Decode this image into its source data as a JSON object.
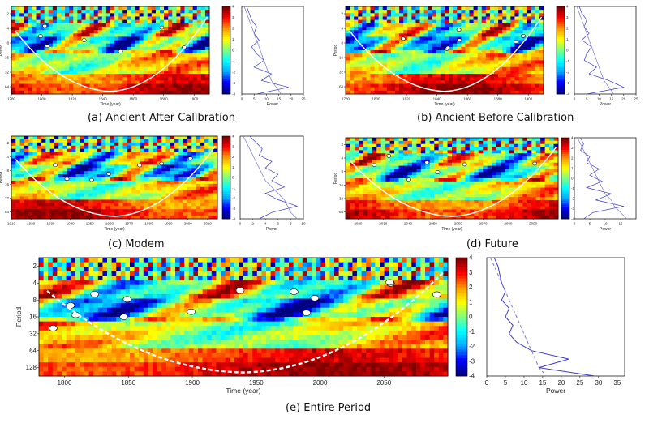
{
  "colors": {
    "colormap": [
      "#000080",
      "#0000ff",
      "#00aaff",
      "#00ffff",
      "#7fff7f",
      "#ffff00",
      "#ff9900",
      "#ff0000",
      "#800000"
    ],
    "contour": "#000000",
    "coi_line": "#ffffff",
    "global_line": "#3c3ccc",
    "significance_line": "#7a7ac8"
  },
  "chart_data": [
    {
      "id": "a",
      "type": "heatmap",
      "caption": "(a) Ancient-After Calibration",
      "xlabel": "Time (year)",
      "ylabel": "Period",
      "xlim": [
        1780,
        1910
      ],
      "x_ticks": [
        "1780",
        "1800",
        "1820",
        "1840",
        "1860",
        "1880",
        "1900"
      ],
      "y_ticks": [
        "2",
        "4",
        "8",
        "16",
        "32",
        "64"
      ],
      "colorbar_ticks": [
        "4",
        "3",
        "2",
        "1",
        "0",
        "-1",
        "-2",
        "-3",
        "-4"
      ],
      "global_power": {
        "xlabel": "Power",
        "xlim": [
          0,
          25
        ],
        "x_ticks": [
          "0",
          "5",
          "10",
          "15",
          "20",
          "25"
        ],
        "series": [
          {
            "values": [
              2,
              3,
              4,
              6,
              5,
              7,
              4,
              6,
              9,
              5,
              12,
              8,
              19,
              6
            ]
          },
          {
            "values": [
              1,
              2,
              3,
              4,
              5,
              6,
              7,
              8,
              9,
              10,
              11,
              12,
              14,
              16
            ]
          }
        ]
      }
    },
    {
      "id": "b",
      "type": "heatmap",
      "caption": "(b) Ancient-Before Calibration",
      "xlabel": "Time (year)",
      "ylabel": "Period",
      "xlim": [
        1780,
        1910
      ],
      "x_ticks": [
        "1780",
        "1800",
        "1820",
        "1840",
        "1860",
        "1880",
        "1900"
      ],
      "y_ticks": [
        "2",
        "4",
        "8",
        "16",
        "32",
        "64"
      ],
      "colorbar_ticks": [
        "4",
        "3",
        "2",
        "1",
        "0",
        "-1",
        "-2",
        "-3",
        "-4"
      ],
      "global_power": {
        "xlabel": "Power",
        "xlim": [
          0,
          25
        ],
        "x_ticks": [
          "0",
          "5",
          "10",
          "15",
          "20",
          "25"
        ],
        "series": [
          {
            "values": [
              2,
              3,
              5,
              4,
              6,
              3,
              7,
              5,
              4,
              9,
              6,
              14,
              20,
              5
            ]
          },
          {
            "values": [
              1,
              2,
              3,
              4,
              5,
              6,
              7,
              8,
              9,
              10,
              11,
              12,
              14,
              16
            ]
          }
        ]
      }
    },
    {
      "id": "c",
      "type": "heatmap",
      "caption": "(c) Modem",
      "xlabel": "Time (year)",
      "ylabel": "Period",
      "xlim": [
        1910,
        2015
      ],
      "x_ticks": [
        "1910",
        "1920",
        "1930",
        "1940",
        "1950",
        "1960",
        "1970",
        "1980",
        "1990",
        "2000",
        "2010"
      ],
      "y_ticks": [
        "2",
        "4",
        "8",
        "16",
        "32",
        "64"
      ],
      "colorbar_ticks": [
        "4",
        "3",
        "2",
        "1",
        "0",
        "-1",
        "-2",
        "-3",
        "-4"
      ],
      "global_power": {
        "xlabel": "Power",
        "xlim": [
          0,
          10
        ],
        "x_ticks": [
          "0",
          "2",
          "4",
          "6",
          "8",
          "10"
        ],
        "series": [
          {
            "values": [
              1.5,
              2.5,
              3.5,
              3,
              5,
              4,
              6,
              5,
              7,
              4,
              6,
              9,
              5,
              3
            ]
          },
          {
            "values": [
              0.5,
              1,
              1.5,
              2,
              2.5,
              3,
              3.5,
              4,
              5,
              6,
              7,
              7.5,
              8,
              9
            ]
          }
        ]
      }
    },
    {
      "id": "d",
      "type": "heatmap",
      "caption": "(d) Future",
      "xlabel": "Time (year)",
      "ylabel": "Period",
      "xlim": [
        2015,
        2100
      ],
      "x_ticks": [
        "2020",
        "2030",
        "2040",
        "2050",
        "2060",
        "2070",
        "2080",
        "2090"
      ],
      "y_ticks": [
        "2",
        "4",
        "8",
        "16",
        "32",
        "64"
      ],
      "colorbar_ticks": [
        "4",
        "3",
        "2",
        "1",
        "0",
        "-1",
        "-2",
        "-3",
        "-4"
      ],
      "global_power": {
        "xlabel": "Power",
        "xlim": [
          0,
          20
        ],
        "x_ticks": [
          "0",
          "5",
          "10",
          "15"
        ],
        "series": [
          {
            "values": [
              2,
              3,
              2,
              5,
              4,
              8,
              5,
              9,
              4,
              12,
              7,
              16,
              6,
              3
            ]
          },
          {
            "values": [
              1,
              2,
              3,
              4,
              5,
              6,
              7,
              8,
              9,
              10,
              12,
              13,
              15,
              17
            ]
          }
        ]
      }
    },
    {
      "id": "e",
      "type": "heatmap",
      "caption": "(e) Entire Period",
      "xlabel": "Time (year)",
      "ylabel": "Period",
      "xlim": [
        1780,
        2100
      ],
      "x_ticks": [
        "1800",
        "1850",
        "1900",
        "1950",
        "2000",
        "2050"
      ],
      "y_ticks": [
        "2",
        "4",
        "8",
        "16",
        "32",
        "64",
        "128"
      ],
      "colorbar_ticks": [
        "4",
        "3",
        "2",
        "1",
        "0",
        "-1",
        "-2",
        "-3",
        "-4"
      ],
      "global_power": {
        "xlabel": "Power",
        "xlim": [
          0,
          37
        ],
        "x_ticks": [
          "0",
          "5",
          "10",
          "15",
          "20",
          "25",
          "30",
          "35"
        ],
        "series": [
          {
            "values": [
              2,
              3,
              3.5,
              4,
              5,
              4,
              6,
              5,
              7,
              6,
              8,
              12,
              22,
              14,
              29
            ]
          },
          {
            "values": [
              1,
              2,
              3,
              4,
              5,
              6,
              7,
              8,
              9,
              10,
              11,
              12,
              13,
              14,
              16
            ]
          }
        ]
      }
    }
  ]
}
